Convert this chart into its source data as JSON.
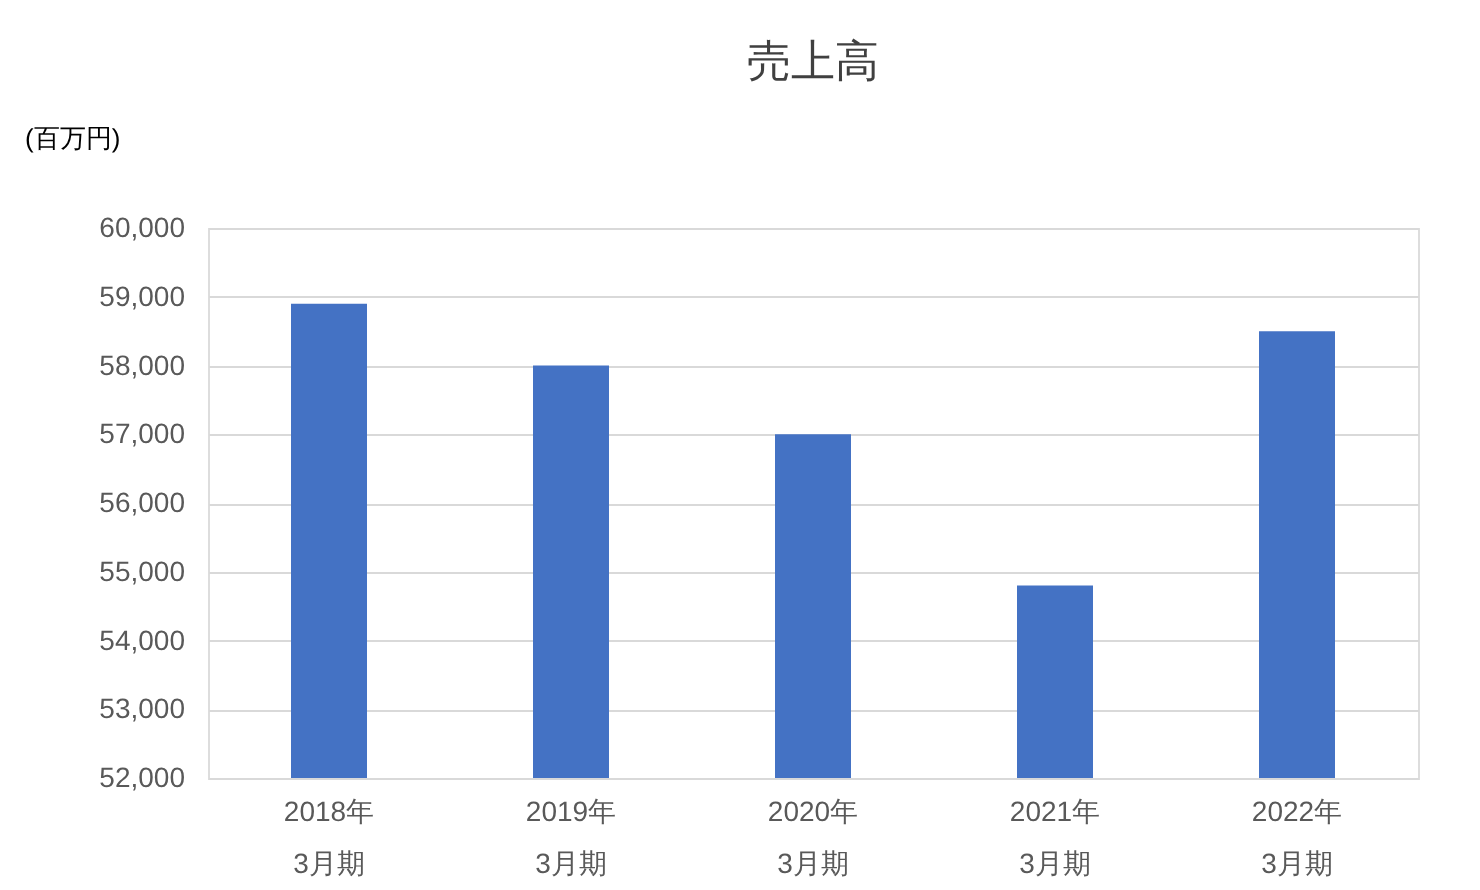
{
  "chart_data": {
    "type": "bar",
    "title": "売上高",
    "ylabel": "(百万円)",
    "categories": [
      "2018年\n3月期",
      "2019年\n3月期",
      "2020年\n3月期",
      "2021年\n3月期",
      "2022年\n3月期"
    ],
    "values": [
      58900,
      58000,
      57000,
      54800,
      58500
    ],
    "color": "#4472c4",
    "ylim": [
      52000,
      60000
    ],
    "yticks": [
      {
        "value": 52000,
        "label": "52,000"
      },
      {
        "value": 53000,
        "label": "53,000"
      },
      {
        "value": 54000,
        "label": "54,000"
      },
      {
        "value": 55000,
        "label": "55,000"
      },
      {
        "value": 56000,
        "label": "56,000"
      },
      {
        "value": 57000,
        "label": "57,000"
      },
      {
        "value": 58000,
        "label": "58,000"
      },
      {
        "value": 59000,
        "label": "59,000"
      },
      {
        "value": 60000,
        "label": "60,000"
      }
    ],
    "grid": "y"
  }
}
